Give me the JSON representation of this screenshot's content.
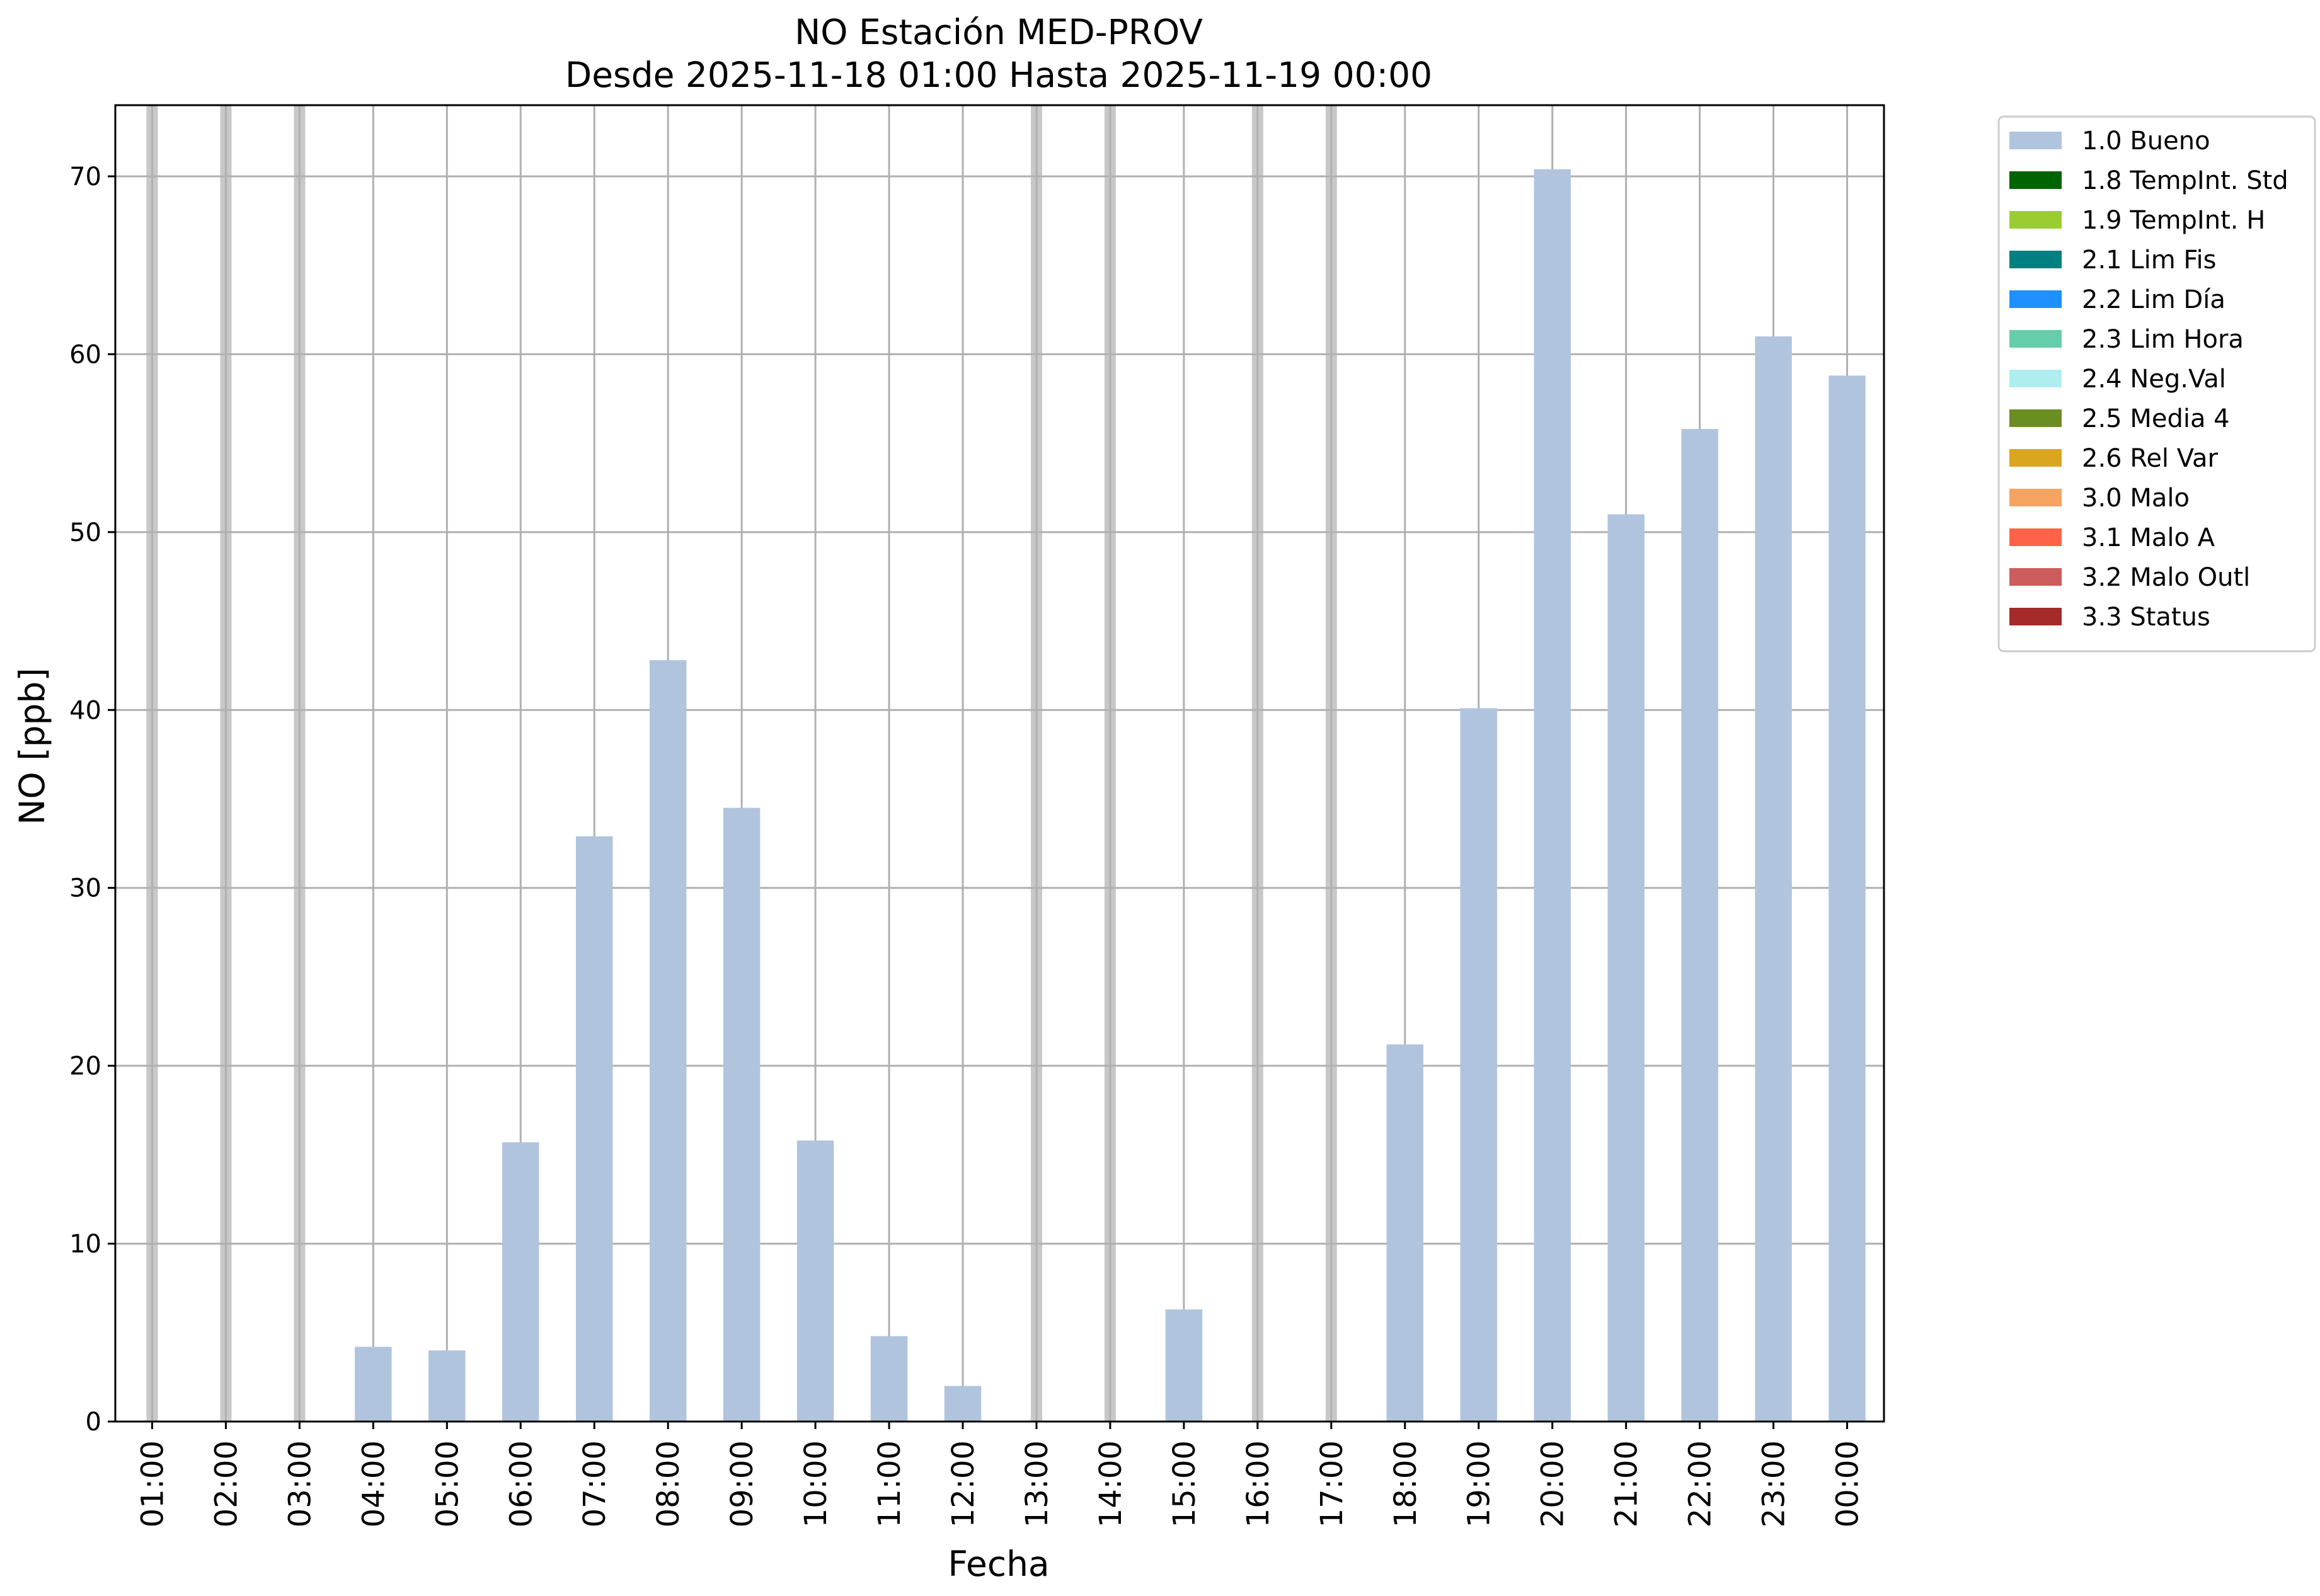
{
  "chart_data": {
    "type": "bar",
    "title": "NO Estación MED-PROV",
    "subtitle": "Desde 2025-11-18 01:00 Hasta 2025-11-19 00:00",
    "xlabel": "Fecha",
    "ylabel": "NO [ppb]",
    "ylim": [
      0,
      74
    ],
    "yticks": [
      0,
      10,
      20,
      30,
      40,
      50,
      60,
      70
    ],
    "grid": true,
    "legend_position": "outside right, top",
    "categories": [
      "01:00",
      "02:00",
      "03:00",
      "04:00",
      "05:00",
      "06:00",
      "07:00",
      "08:00",
      "09:00",
      "10:00",
      "11:00",
      "12:00",
      "13:00",
      "14:00",
      "15:00",
      "16:00",
      "17:00",
      "18:00",
      "19:00",
      "20:00",
      "21:00",
      "22:00",
      "23:00",
      "00:00"
    ],
    "series": [
      {
        "name": "1.0 Bueno",
        "color": "#b0c4de",
        "values": [
          null,
          null,
          null,
          4.2,
          4.0,
          15.7,
          32.9,
          42.8,
          34.5,
          15.8,
          4.8,
          2.0,
          null,
          null,
          6.3,
          null,
          null,
          21.2,
          40.1,
          70.4,
          51.0,
          55.8,
          61.0,
          58.8
        ]
      }
    ],
    "missing_marker_color": "#c8c8c8",
    "legend": [
      {
        "label": "1.0 Bueno",
        "color": "#b0c4de"
      },
      {
        "label": "1.8 TempInt. Std",
        "color": "#006400"
      },
      {
        "label": "1.9 TempInt. H",
        "color": "#9acd32"
      },
      {
        "label": "2.1 Lim Fis",
        "color": "#008080"
      },
      {
        "label": "2.2 Lim Día",
        "color": "#1e90ff"
      },
      {
        "label": "2.3 Lim Hora",
        "color": "#66cdaa"
      },
      {
        "label": "2.4 Neg.Val",
        "color": "#afeeee"
      },
      {
        "label": "2.5 Media 4",
        "color": "#6b8e23"
      },
      {
        "label": "2.6 Rel Var",
        "color": "#daa520"
      },
      {
        "label": "3.0 Malo",
        "color": "#f4a460"
      },
      {
        "label": "3.1 Malo A",
        "color": "#ff6347"
      },
      {
        "label": "3.2 Malo Outl",
        "color": "#cd5c5c"
      },
      {
        "label": "3.3 Status",
        "color": "#a52a2a"
      }
    ]
  }
}
